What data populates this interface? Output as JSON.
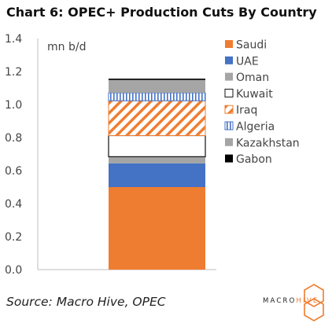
{
  "title": "Chart 6: OPEC+ Production Cuts By Country",
  "source": "Source: Macro Hive, OPEC",
  "logo": {
    "part1": "MACRO",
    "part2": "HIVE"
  },
  "colors": {
    "Saudi": "#ef7d31",
    "UAE": "#4472c4",
    "Oman": "#a5a5a5",
    "Kuwait": "#ffffff",
    "Iraq": "#ef7d31",
    "Algeria": "#4472c4",
    "Kazakhstan": "#a5a5a5",
    "Gabon": "#000000"
  },
  "chart_data": {
    "type": "bar",
    "stacked": true,
    "categories": [
      ""
    ],
    "unit_label": "mn b/d",
    "ylim": [
      0,
      1.4
    ],
    "yticks": [
      "0.0",
      "0.2",
      "0.4",
      "0.6",
      "0.8",
      "1.0",
      "1.2",
      "1.4"
    ],
    "grid": false,
    "legend_position": "right",
    "series": [
      {
        "name": "Saudi",
        "values": [
          0.5
        ],
        "pattern": "solid"
      },
      {
        "name": "UAE",
        "values": [
          0.144
        ],
        "pattern": "solid"
      },
      {
        "name": "Oman",
        "values": [
          0.04
        ],
        "pattern": "solid"
      },
      {
        "name": "Kuwait",
        "values": [
          0.128
        ],
        "pattern": "outline"
      },
      {
        "name": "Iraq",
        "values": [
          0.211
        ],
        "pattern": "diagonal-stripes"
      },
      {
        "name": "Algeria",
        "values": [
          0.048
        ],
        "pattern": "vertical-stripes"
      },
      {
        "name": "Kazakhstan",
        "values": [
          0.078
        ],
        "pattern": "solid"
      },
      {
        "name": "Gabon",
        "values": [
          0.008
        ],
        "pattern": "solid"
      }
    ]
  }
}
